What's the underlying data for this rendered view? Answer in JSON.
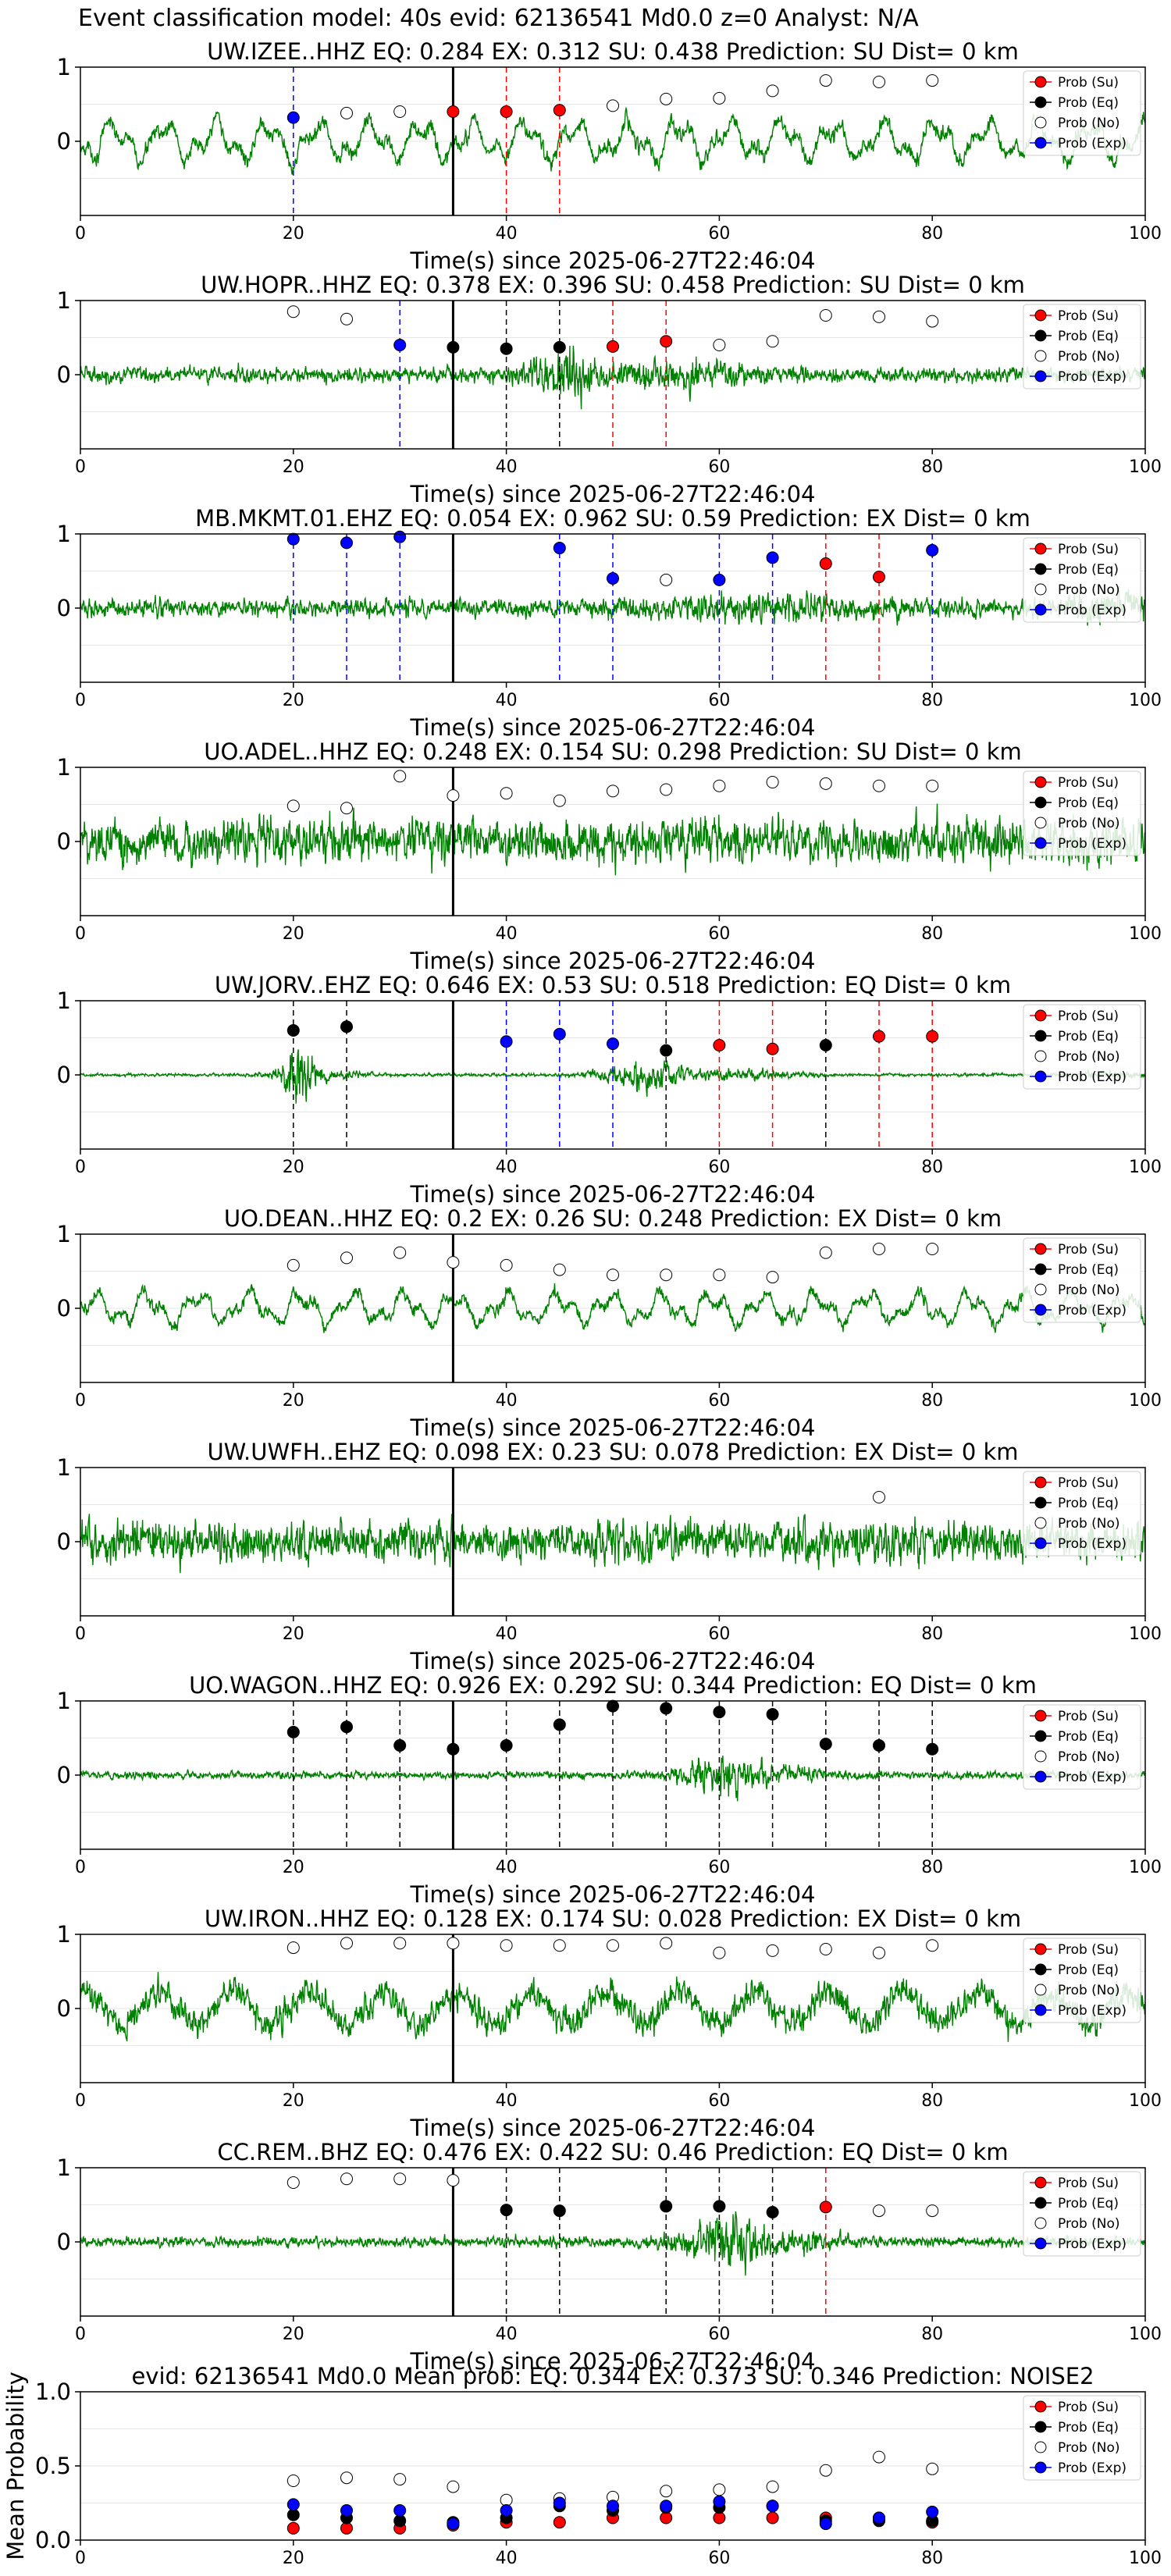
{
  "figure": {
    "suptitle": "Event classification model: 40s evid: 62136541 Md0.0 z=0 Analyst: N/A"
  },
  "legend_labels": [
    "Prob (Su)",
    "Prob (Eq)",
    "Prob (No)",
    "Prob (Exp)"
  ],
  "colors": {
    "trace": "#008000",
    "su": "#ff0000",
    "eq": "#000000",
    "no": "#ffffff",
    "exp": "#0000ff",
    "event_line": "#000000"
  },
  "chart_data": [
    {
      "type": "line",
      "title": "UW.IZEE..HHZ   EQ: 0.284  EX: 0.312  SU: 0.438   Prediction: SU    Dist= 0 km",
      "xlabel": "Time(s) since 2025-06-27T22:46:04",
      "xlim": [
        0,
        100
      ],
      "ylim": [
        -1,
        1
      ],
      "yticks": [
        1,
        0
      ],
      "xticks": [
        0,
        20,
        40,
        60,
        80,
        100
      ],
      "event_time": 35,
      "waveform": {
        "noise_amplitude": 0.35,
        "character": "low-frequency"
      },
      "points": [
        {
          "t": 20,
          "class": "exp",
          "p": 0.32
        },
        {
          "t": 25,
          "class": "no",
          "p": 0.38
        },
        {
          "t": 30,
          "class": "no",
          "p": 0.4
        },
        {
          "t": 35,
          "class": "su",
          "p": 0.4
        },
        {
          "t": 40,
          "class": "su",
          "p": 0.4
        },
        {
          "t": 45,
          "class": "su",
          "p": 0.42
        },
        {
          "t": 50,
          "class": "no",
          "p": 0.48
        },
        {
          "t": 55,
          "class": "no",
          "p": 0.57
        },
        {
          "t": 60,
          "class": "no",
          "p": 0.58
        },
        {
          "t": 65,
          "class": "no",
          "p": 0.68
        },
        {
          "t": 70,
          "class": "no",
          "p": 0.82
        },
        {
          "t": 75,
          "class": "no",
          "p": 0.8
        },
        {
          "t": 80,
          "class": "no",
          "p": 0.82
        }
      ]
    },
    {
      "type": "line",
      "title": "UW.HOPR..HHZ   EQ: 0.378  EX: 0.396  SU: 0.458   Prediction: SU    Dist= 0 km",
      "xlabel": "Time(s) since 2025-06-27T22:46:04",
      "xlim": [
        0,
        100
      ],
      "ylim": [
        -1,
        1
      ],
      "yticks": [
        1,
        0
      ],
      "xticks": [
        0,
        20,
        40,
        60,
        80,
        100
      ],
      "event_time": 35,
      "waveform": {
        "noise_amplitude": 0.15,
        "character": "burst-45"
      },
      "points": [
        {
          "t": 20,
          "class": "no",
          "p": 0.85
        },
        {
          "t": 25,
          "class": "no",
          "p": 0.75
        },
        {
          "t": 30,
          "class": "exp",
          "p": 0.4
        },
        {
          "t": 35,
          "class": "eq",
          "p": 0.37
        },
        {
          "t": 40,
          "class": "eq",
          "p": 0.35
        },
        {
          "t": 45,
          "class": "eq",
          "p": 0.37
        },
        {
          "t": 50,
          "class": "su",
          "p": 0.38
        },
        {
          "t": 55,
          "class": "su",
          "p": 0.45
        },
        {
          "t": 60,
          "class": "no",
          "p": 0.4
        },
        {
          "t": 65,
          "class": "no",
          "p": 0.45
        },
        {
          "t": 70,
          "class": "no",
          "p": 0.8
        },
        {
          "t": 75,
          "class": "no",
          "p": 0.78
        },
        {
          "t": 80,
          "class": "no",
          "p": 0.72
        }
      ]
    },
    {
      "type": "line",
      "title": "MB.MKMT.01.EHZ   EQ: 0.054  EX: 0.962  SU: 0.59   Prediction: EX    Dist= 0 km",
      "xlabel": "Time(s) since 2025-06-27T22:46:04",
      "xlim": [
        0,
        100
      ],
      "ylim": [
        -1,
        1
      ],
      "yticks": [
        1,
        0
      ],
      "xticks": [
        0,
        20,
        40,
        60,
        80,
        100
      ],
      "event_time": 35,
      "waveform": {
        "noise_amplitude": 0.18,
        "character": "spiky"
      },
      "points": [
        {
          "t": 20,
          "class": "exp",
          "p": 0.93
        },
        {
          "t": 25,
          "class": "exp",
          "p": 0.88
        },
        {
          "t": 30,
          "class": "exp",
          "p": 0.96
        },
        {
          "t": 45,
          "class": "exp",
          "p": 0.81
        },
        {
          "t": 50,
          "class": "exp",
          "p": 0.4
        },
        {
          "t": 55,
          "class": "no",
          "p": 0.38
        },
        {
          "t": 60,
          "class": "exp",
          "p": 0.38
        },
        {
          "t": 65,
          "class": "exp",
          "p": 0.68
        },
        {
          "t": 70,
          "class": "su",
          "p": 0.6
        },
        {
          "t": 75,
          "class": "su",
          "p": 0.42
        },
        {
          "t": 80,
          "class": "exp",
          "p": 0.78
        }
      ]
    },
    {
      "type": "line",
      "title": "UO.ADEL..HHZ   EQ: 0.248  EX: 0.154  SU: 0.298   Prediction: SU    Dist= 0 km",
      "xlabel": "Time(s) since 2025-06-27T22:46:04",
      "xlim": [
        0,
        100
      ],
      "ylim": [
        -1,
        1
      ],
      "yticks": [
        1,
        0
      ],
      "xticks": [
        0,
        20,
        40,
        60,
        80,
        100
      ],
      "event_time": 35,
      "waveform": {
        "noise_amplitude": 0.45,
        "character": "broadband"
      },
      "points": [
        {
          "t": 20,
          "class": "no",
          "p": 0.48
        },
        {
          "t": 25,
          "class": "no",
          "p": 0.45
        },
        {
          "t": 30,
          "class": "no",
          "p": 0.88
        },
        {
          "t": 35,
          "class": "no",
          "p": 0.62
        },
        {
          "t": 40,
          "class": "no",
          "p": 0.65
        },
        {
          "t": 45,
          "class": "no",
          "p": 0.55
        },
        {
          "t": 50,
          "class": "no",
          "p": 0.68
        },
        {
          "t": 55,
          "class": "no",
          "p": 0.7
        },
        {
          "t": 60,
          "class": "no",
          "p": 0.75
        },
        {
          "t": 65,
          "class": "no",
          "p": 0.8
        },
        {
          "t": 70,
          "class": "no",
          "p": 0.78
        },
        {
          "t": 75,
          "class": "no",
          "p": 0.75
        },
        {
          "t": 80,
          "class": "no",
          "p": 0.75
        }
      ]
    },
    {
      "type": "line",
      "title": "UW.JORV..EHZ   EQ: 0.646  EX: 0.53  SU: 0.518   Prediction: EQ    Dist= 0 km",
      "xlabel": "Time(s) since 2025-06-27T22:46:04",
      "xlim": [
        0,
        100
      ],
      "ylim": [
        -1,
        1
      ],
      "yticks": [
        1,
        0
      ],
      "xticks": [
        0,
        20,
        40,
        60,
        80,
        100
      ],
      "event_time": 35,
      "waveform": {
        "noise_amplitude": 0.03,
        "character": "event-bursts"
      },
      "points": [
        {
          "t": 20,
          "class": "eq",
          "p": 0.6
        },
        {
          "t": 25,
          "class": "eq",
          "p": 0.65
        },
        {
          "t": 40,
          "class": "exp",
          "p": 0.45
        },
        {
          "t": 45,
          "class": "exp",
          "p": 0.55
        },
        {
          "t": 50,
          "class": "exp",
          "p": 0.42
        },
        {
          "t": 55,
          "class": "eq",
          "p": 0.33
        },
        {
          "t": 60,
          "class": "su",
          "p": 0.4
        },
        {
          "t": 65,
          "class": "su",
          "p": 0.35
        },
        {
          "t": 70,
          "class": "eq",
          "p": 0.4
        },
        {
          "t": 75,
          "class": "su",
          "p": 0.52
        },
        {
          "t": 80,
          "class": "su",
          "p": 0.52
        }
      ]
    },
    {
      "type": "line",
      "title": "UO.DEAN..HHZ   EQ: 0.2  EX: 0.26  SU: 0.248   Prediction: EX    Dist= 0 km",
      "xlabel": "Time(s) since 2025-06-27T22:46:04",
      "xlim": [
        0,
        100
      ],
      "ylim": [
        -1,
        1
      ],
      "yticks": [
        1,
        0
      ],
      "xticks": [
        0,
        20,
        40,
        60,
        80,
        100
      ],
      "event_time": 35,
      "waveform": {
        "noise_amplitude": 0.28,
        "character": "low-frequency"
      },
      "points": [
        {
          "t": 20,
          "class": "no",
          "p": 0.58
        },
        {
          "t": 25,
          "class": "no",
          "p": 0.68
        },
        {
          "t": 30,
          "class": "no",
          "p": 0.75
        },
        {
          "t": 35,
          "class": "no",
          "p": 0.62
        },
        {
          "t": 40,
          "class": "no",
          "p": 0.58
        },
        {
          "t": 45,
          "class": "no",
          "p": 0.52
        },
        {
          "t": 50,
          "class": "no",
          "p": 0.45
        },
        {
          "t": 55,
          "class": "no",
          "p": 0.45
        },
        {
          "t": 60,
          "class": "no",
          "p": 0.45
        },
        {
          "t": 65,
          "class": "no",
          "p": 0.42
        },
        {
          "t": 70,
          "class": "no",
          "p": 0.75
        },
        {
          "t": 75,
          "class": "no",
          "p": 0.8
        },
        {
          "t": 80,
          "class": "no",
          "p": 0.8
        }
      ]
    },
    {
      "type": "line",
      "title": "UW.UWFH..EHZ   EQ: 0.098  EX: 0.23  SU: 0.078   Prediction: EX    Dist= 0 km",
      "xlabel": "Time(s) since 2025-06-27T22:46:04",
      "xlim": [
        0,
        100
      ],
      "ylim": [
        -1,
        1
      ],
      "yticks": [
        1,
        0
      ],
      "xticks": [
        0,
        20,
        40,
        60,
        80,
        100
      ],
      "event_time": 35,
      "waveform": {
        "noise_amplitude": 0.4,
        "character": "broadband"
      },
      "points": [
        {
          "t": 75,
          "class": "no",
          "p": 0.6
        }
      ]
    },
    {
      "type": "line",
      "title": "UO.WAGON..HHZ   EQ: 0.926  EX: 0.292  SU: 0.344   Prediction: EQ    Dist= 0 km",
      "xlabel": "Time(s) since 2025-06-27T22:46:04",
      "xlim": [
        0,
        100
      ],
      "ylim": [
        -1,
        1
      ],
      "yticks": [
        1,
        0
      ],
      "xticks": [
        0,
        20,
        40,
        60,
        80,
        100
      ],
      "event_time": 35,
      "waveform": {
        "noise_amplitude": 0.07,
        "character": "burst-60"
      },
      "points": [
        {
          "t": 20,
          "class": "eq",
          "p": 0.58
        },
        {
          "t": 25,
          "class": "eq",
          "p": 0.65
        },
        {
          "t": 30,
          "class": "eq",
          "p": 0.4
        },
        {
          "t": 35,
          "class": "eq",
          "p": 0.35
        },
        {
          "t": 40,
          "class": "eq",
          "p": 0.4
        },
        {
          "t": 45,
          "class": "eq",
          "p": 0.68
        },
        {
          "t": 50,
          "class": "eq",
          "p": 0.93
        },
        {
          "t": 55,
          "class": "eq",
          "p": 0.9
        },
        {
          "t": 60,
          "class": "eq",
          "p": 0.85
        },
        {
          "t": 65,
          "class": "eq",
          "p": 0.82
        },
        {
          "t": 70,
          "class": "eq",
          "p": 0.42
        },
        {
          "t": 75,
          "class": "eq",
          "p": 0.4
        },
        {
          "t": 80,
          "class": "eq",
          "p": 0.35
        }
      ]
    },
    {
      "type": "line",
      "title": "UW.IRON..HHZ   EQ: 0.128  EX: 0.174  SU: 0.028   Prediction: EX    Dist= 0 km",
      "xlabel": "Time(s) since 2025-06-27T22:46:04",
      "xlim": [
        0,
        100
      ],
      "ylim": [
        -1,
        1
      ],
      "yticks": [
        1,
        0
      ],
      "xticks": [
        0,
        20,
        40,
        60,
        80,
        100
      ],
      "event_time": 35,
      "waveform": {
        "noise_amplitude": 0.42,
        "character": "mixed"
      },
      "points": [
        {
          "t": 20,
          "class": "no",
          "p": 0.82
        },
        {
          "t": 25,
          "class": "no",
          "p": 0.88
        },
        {
          "t": 30,
          "class": "no",
          "p": 0.88
        },
        {
          "t": 35,
          "class": "no",
          "p": 0.88
        },
        {
          "t": 40,
          "class": "no",
          "p": 0.85
        },
        {
          "t": 45,
          "class": "no",
          "p": 0.85
        },
        {
          "t": 50,
          "class": "no",
          "p": 0.85
        },
        {
          "t": 55,
          "class": "no",
          "p": 0.88
        },
        {
          "t": 60,
          "class": "no",
          "p": 0.75
        },
        {
          "t": 65,
          "class": "no",
          "p": 0.78
        },
        {
          "t": 70,
          "class": "no",
          "p": 0.8
        },
        {
          "t": 75,
          "class": "no",
          "p": 0.75
        },
        {
          "t": 80,
          "class": "no",
          "p": 0.85
        }
      ]
    },
    {
      "type": "line",
      "title": "CC.REM..BHZ   EQ: 0.476  EX: 0.422  SU: 0.46   Prediction: EQ    Dist= 0 km",
      "xlabel": "Time(s) since 2025-06-27T22:46:04",
      "xlim": [
        0,
        100
      ],
      "ylim": [
        -1,
        1
      ],
      "yticks": [
        1,
        0
      ],
      "xticks": [
        0,
        20,
        40,
        60,
        80,
        100
      ],
      "event_time": 35,
      "waveform": {
        "noise_amplitude": 0.1,
        "character": "burst-60"
      },
      "points": [
        {
          "t": 20,
          "class": "no",
          "p": 0.8
        },
        {
          "t": 25,
          "class": "no",
          "p": 0.85
        },
        {
          "t": 30,
          "class": "no",
          "p": 0.85
        },
        {
          "t": 35,
          "class": "no",
          "p": 0.83
        },
        {
          "t": 40,
          "class": "eq",
          "p": 0.43
        },
        {
          "t": 45,
          "class": "eq",
          "p": 0.42
        },
        {
          "t": 55,
          "class": "eq",
          "p": 0.48
        },
        {
          "t": 60,
          "class": "eq",
          "p": 0.48
        },
        {
          "t": 65,
          "class": "eq",
          "p": 0.4
        },
        {
          "t": 70,
          "class": "su",
          "p": 0.47
        },
        {
          "t": 75,
          "class": "no",
          "p": 0.42
        },
        {
          "t": 80,
          "class": "no",
          "p": 0.42
        }
      ]
    },
    {
      "type": "scatter",
      "title": "evid: 62136541  Md0.0   Mean prob:   EQ: 0.344  EX: 0.373  SU: 0.346   Prediction: NOISE2",
      "ylabel": "Mean Probability",
      "xlim": [
        0,
        100
      ],
      "ylim": [
        0,
        1
      ],
      "yticks": [
        1.0,
        0.5,
        0.0
      ],
      "ytick_labels": [
        "1.0",
        "0.5",
        "0.0"
      ],
      "xticks": [
        0,
        20,
        40,
        60,
        80,
        100
      ],
      "x": [
        20,
        25,
        30,
        35,
        40,
        45,
        50,
        55,
        60,
        65,
        70,
        75,
        80
      ],
      "series": [
        {
          "name": "Prob (Su)",
          "key": "su",
          "values": [
            0.08,
            0.08,
            0.08,
            0.1,
            0.12,
            0.12,
            0.15,
            0.15,
            0.15,
            0.15,
            0.15,
            0.15,
            0.12
          ]
        },
        {
          "name": "Prob (Eq)",
          "key": "eq",
          "values": [
            0.17,
            0.15,
            0.13,
            0.12,
            0.15,
            0.23,
            0.2,
            0.22,
            0.22,
            0.23,
            0.13,
            0.13,
            0.13
          ]
        },
        {
          "name": "Prob (No)",
          "key": "no",
          "values": [
            0.4,
            0.42,
            0.41,
            0.36,
            0.27,
            0.28,
            0.29,
            0.33,
            0.34,
            0.36,
            0.47,
            0.56,
            0.48
          ]
        },
        {
          "name": "Prob (Exp)",
          "key": "exp",
          "values": [
            0.24,
            0.2,
            0.2,
            0.11,
            0.2,
            0.25,
            0.23,
            0.23,
            0.26,
            0.23,
            0.11,
            0.15,
            0.19
          ]
        }
      ]
    }
  ]
}
